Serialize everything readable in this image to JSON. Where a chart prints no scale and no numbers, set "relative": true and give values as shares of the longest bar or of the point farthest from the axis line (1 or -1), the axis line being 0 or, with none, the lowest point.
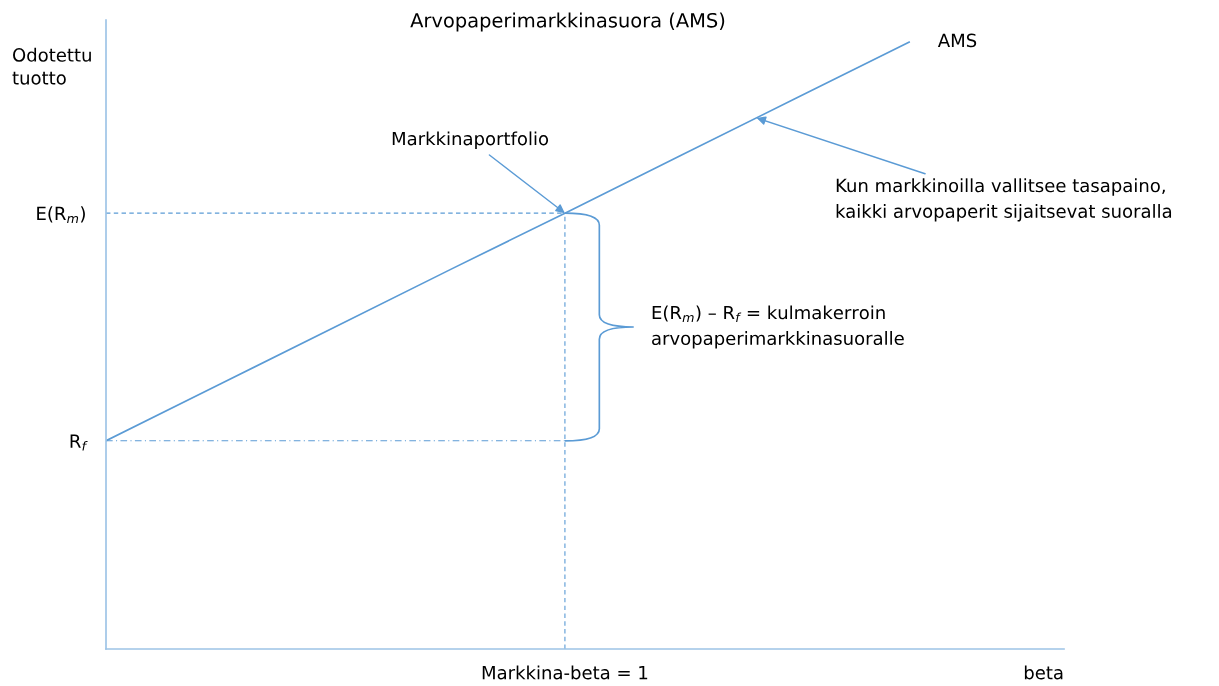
{
  "chart_data": {
    "type": "line",
    "title": "Arvopaperimarkkinasuora (AMS)",
    "xlabel": "beta",
    "ylabel": "Odotettu\ntuotto",
    "relative": true,
    "categories": [
      null,
      null,
      null,
      null,
      null,
      null,
      null,
      null
    ],
    "series": [
      {
        "name": "AMS",
        "color": "#5b9bd5",
        "values": [
          0.343,
          0.437,
          0.531,
          0.625,
          0.718,
          0.812,
          0.906,
          1.0
        ]
      }
    ],
    "ref_lines": [
      {
        "axis": "y",
        "value": 0.718,
        "label": "E(R$_{m}$)",
        "line_style": "dashed",
        "color": "#5b9bd5"
      },
      {
        "axis": "y",
        "value": 0.343,
        "label": "R$_{f}$",
        "line_style": "dashdot",
        "color": "#5b9bd5"
      }
    ],
    "annotations": [
      "Markkinaportfolio",
      "Kun markkinoilla vallitsee tasapaino,\nkaikki arvopaperit sijaitsevat suoralla",
      "E(R$_{m}$) – R$_{f}$ = kulmakerroin\narvopaperimarkkinasuoralle",
      "Markkina-beta = 1"
    ]
  }
}
